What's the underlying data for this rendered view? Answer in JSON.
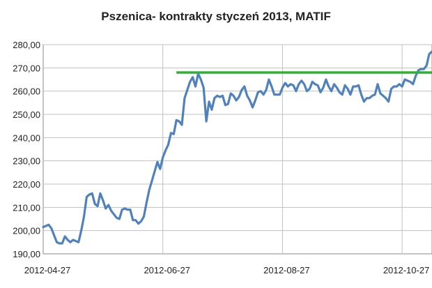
{
  "chart_data": {
    "type": "line",
    "title": "Pszenica- kontrakty styczeń 2013, MATIF",
    "xlabel": "",
    "ylabel": "",
    "ylim": [
      190,
      280
    ],
    "yticks": [
      "190,00",
      "200,00",
      "210,00",
      "220,00",
      "230,00",
      "240,00",
      "250,00",
      "260,00",
      "270,00",
      "280,00"
    ],
    "xticks": [
      {
        "label": "2012-04-27",
        "index": 0
      },
      {
        "label": "2012-06-27",
        "index": 44
      },
      {
        "label": "2012-08-27",
        "index": 88
      },
      {
        "label": "2012-10-27",
        "index": 132
      }
    ],
    "grid": true,
    "legend": "none",
    "colors": {
      "series": "#4f81bd",
      "resistance": "#2eb135",
      "grid": "#c0c0c0"
    },
    "series": [
      {
        "values": [
          201.5,
          202,
          202.5,
          201,
          198,
          195,
          194.5,
          194.5,
          197.5,
          196,
          195,
          196,
          195.5,
          195,
          200,
          206,
          214.5,
          215.5,
          216,
          211.5,
          210.5,
          216,
          213,
          209.5,
          211,
          208.5,
          207,
          205.5,
          205,
          209,
          209.5,
          209,
          209,
          204.5,
          204.5,
          203,
          204,
          206,
          212,
          217.5,
          221.5,
          225.5,
          229.5,
          226.5,
          231.5,
          234.5,
          237,
          242,
          241.5,
          247.5,
          247,
          245.5,
          257,
          260.5,
          264,
          266,
          262,
          267.5,
          265,
          261.5,
          247,
          255.5,
          252,
          257,
          258,
          257.5,
          258,
          254,
          254.5,
          259,
          258,
          256,
          257.5,
          260.5,
          262,
          258,
          256,
          253,
          256,
          259.5,
          260,
          258.5,
          260.5,
          265,
          262,
          258.5,
          258.5,
          258.5,
          261.5,
          263.5,
          262,
          263,
          262.5,
          260,
          263,
          264.5,
          263,
          260,
          261,
          264,
          263,
          262.5,
          259.5,
          261.5,
          265,
          262,
          260,
          263,
          261.5,
          259.5,
          258.5,
          262.5,
          261,
          258.5,
          262,
          262,
          262.5,
          258.5,
          255.5,
          257,
          257,
          258,
          258.5,
          263,
          259,
          258,
          257,
          255.5,
          261,
          262,
          262,
          263,
          262,
          265,
          264.5,
          264,
          263,
          266.5,
          269,
          269.5,
          269.5,
          271,
          276,
          277
        ]
      }
    ],
    "annotations": [
      {
        "type": "horizontal-line",
        "y": 268,
        "from_index": 49,
        "to_index": 150,
        "color": "#2eb135"
      }
    ]
  }
}
